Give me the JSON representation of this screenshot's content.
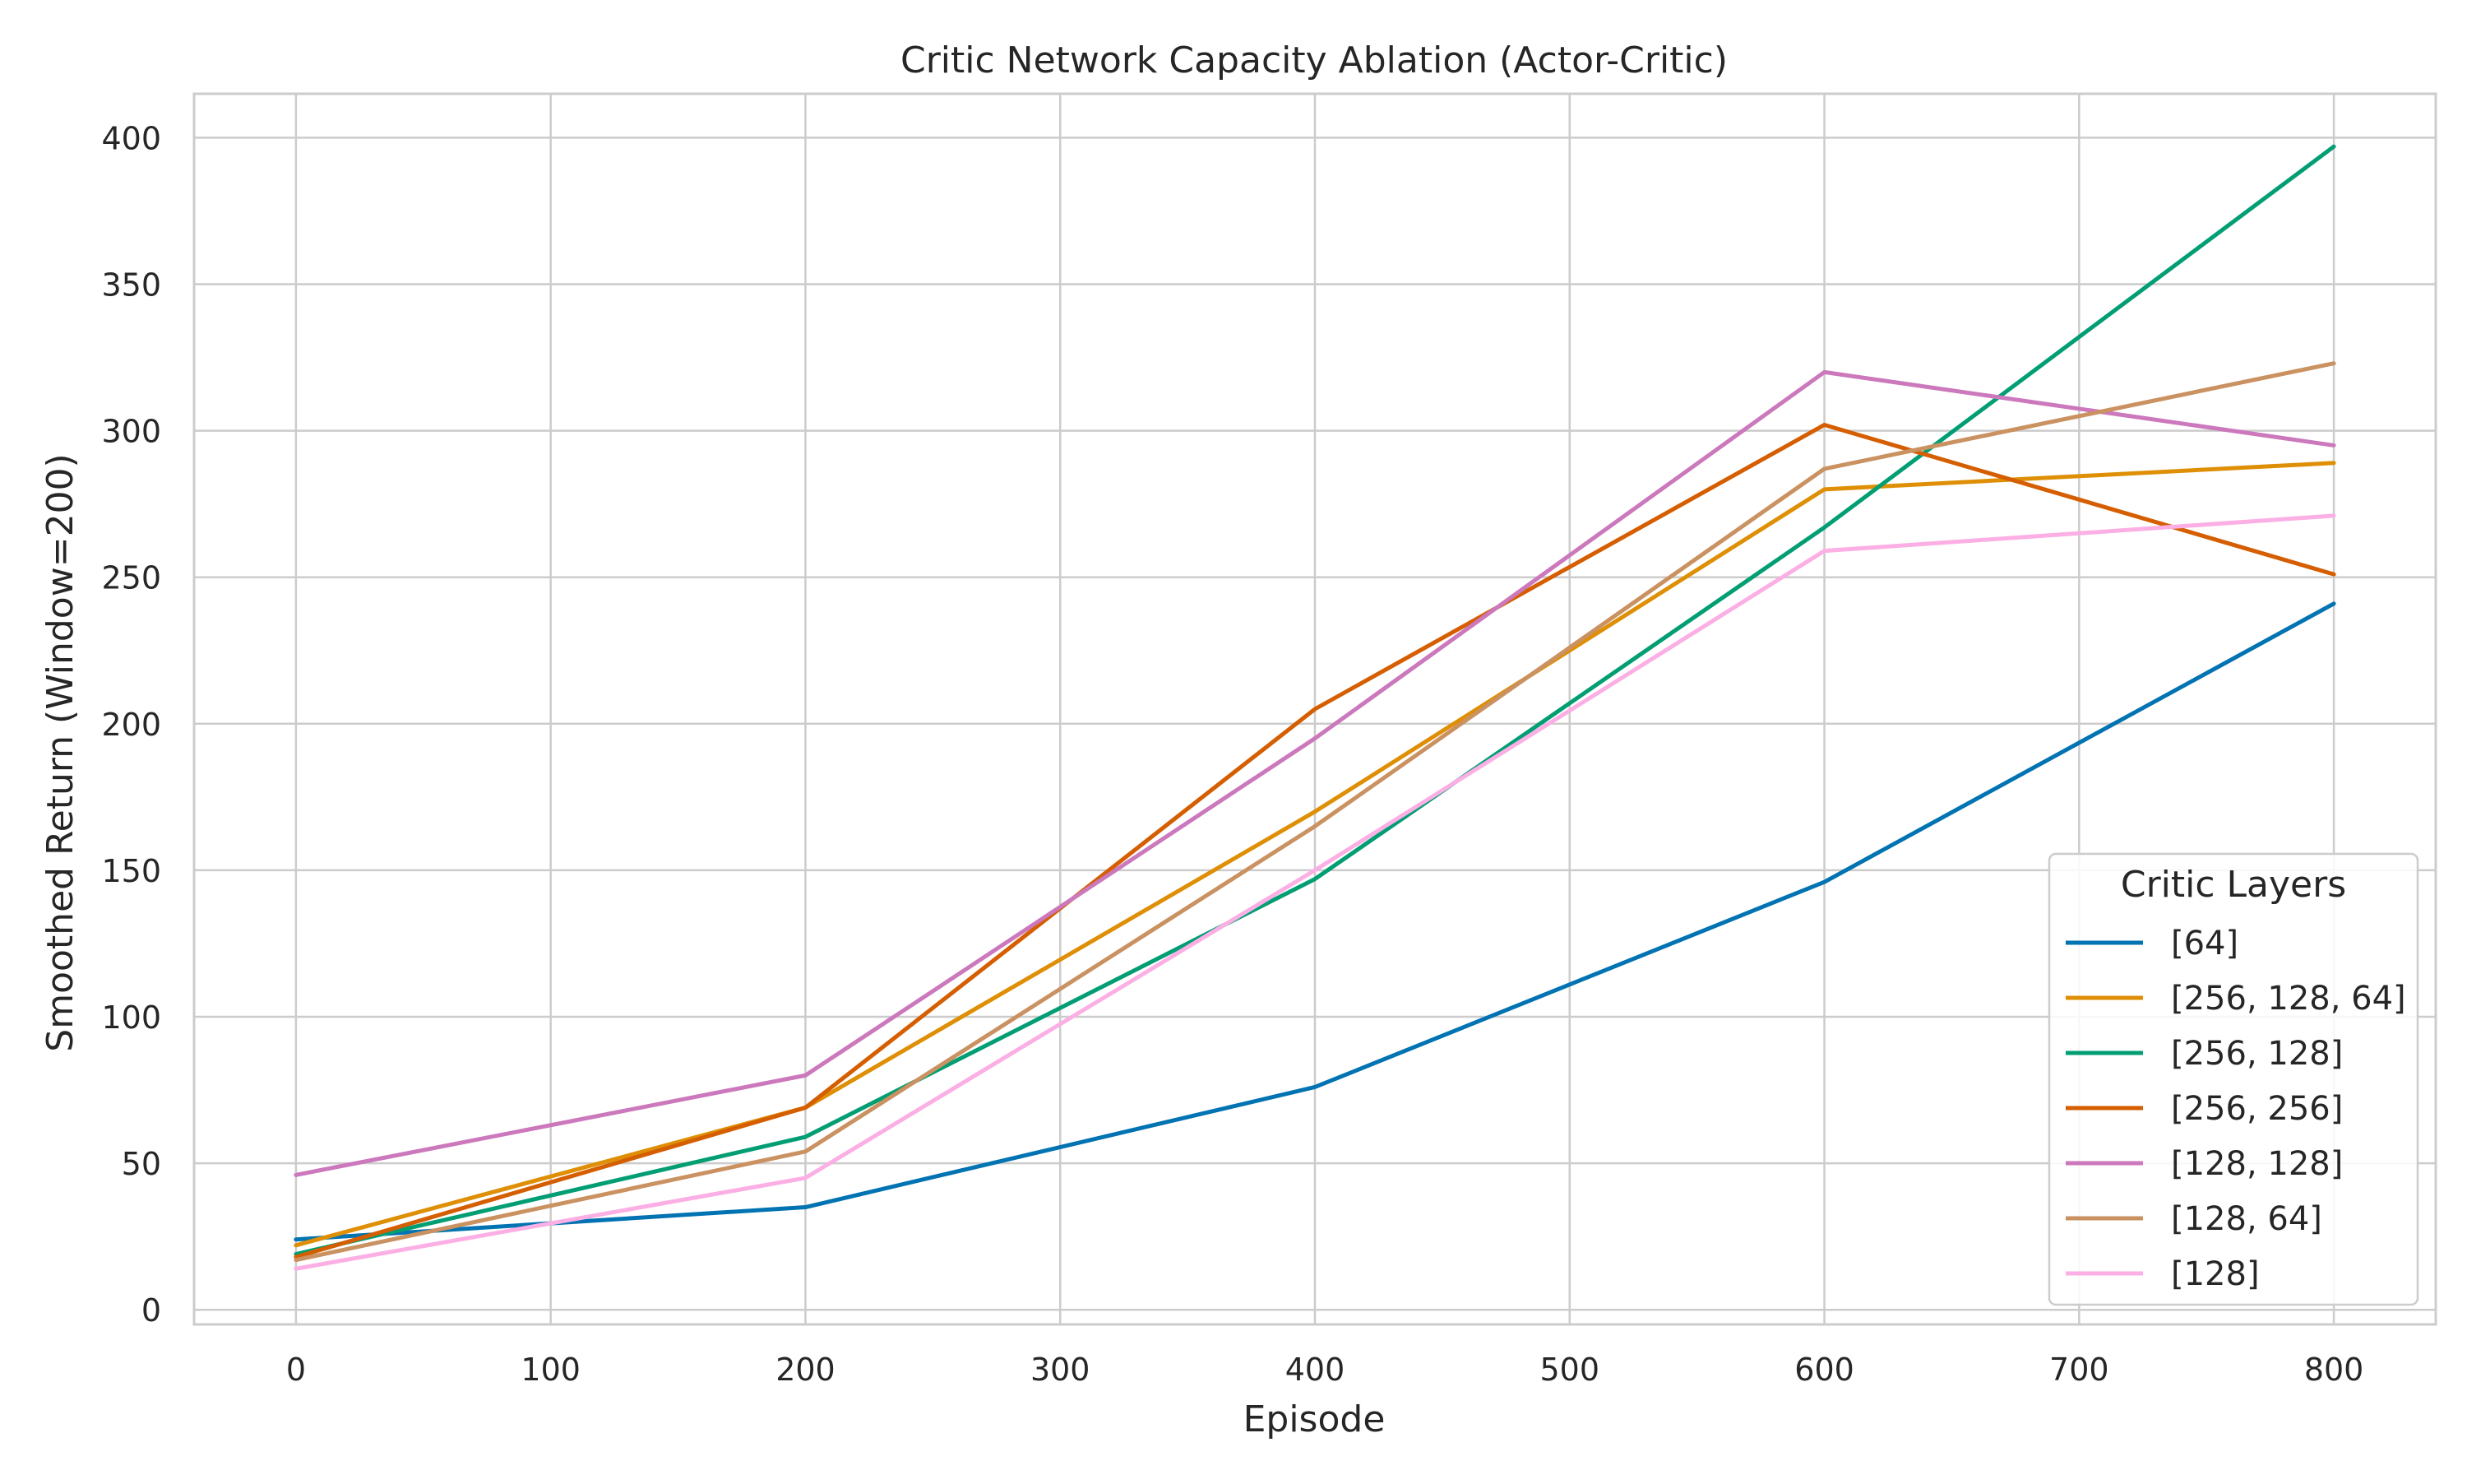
{
  "chart_data": {
    "type": "line",
    "title": "Critic Network Capacity Ablation (Actor-Critic)",
    "xlabel": "Episode",
    "ylabel": "Smoothed Return (Window=200)",
    "x": [
      0,
      200,
      400,
      600,
      800
    ],
    "xlim": [
      -40,
      840
    ],
    "ylim": [
      -5,
      415
    ],
    "xticks": [
      0,
      100,
      200,
      300,
      400,
      500,
      600,
      700,
      800
    ],
    "yticks": [
      0,
      50,
      100,
      150,
      200,
      250,
      300,
      350,
      400
    ],
    "grid": true,
    "legend": {
      "title": "Critic Layers",
      "placement": "lower-right"
    },
    "series": [
      {
        "name": "[64]",
        "color": "#0173b2",
        "values": [
          24,
          35,
          76,
          146,
          241
        ]
      },
      {
        "name": "[256, 128, 64]",
        "color": "#de8f05",
        "values": [
          22,
          69,
          170,
          280,
          289
        ]
      },
      {
        "name": "[256, 128]",
        "color": "#029e73",
        "values": [
          19,
          59,
          147,
          267,
          397
        ]
      },
      {
        "name": "[256, 256]",
        "color": "#d55e00",
        "values": [
          18,
          69,
          205,
          302,
          251
        ]
      },
      {
        "name": "[128, 128]",
        "color": "#cc78bc",
        "values": [
          46,
          80,
          195,
          320,
          295
        ]
      },
      {
        "name": "[128, 64]",
        "color": "#ca9161",
        "values": [
          17,
          54,
          165,
          287,
          323
        ]
      },
      {
        "name": "[128]",
        "color": "#fbafe4",
        "values": [
          14,
          45,
          150,
          259,
          271
        ]
      }
    ]
  }
}
